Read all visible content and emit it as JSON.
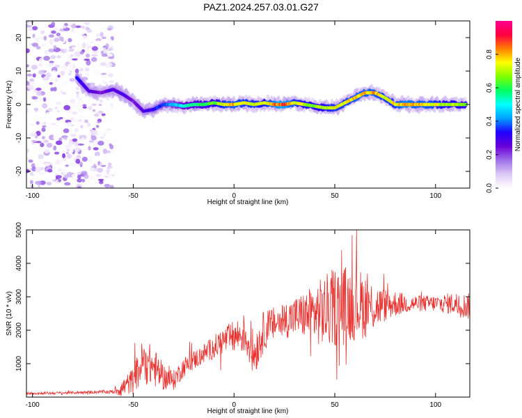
{
  "title": "PAZ1.2024.257.03.01.G27",
  "chart_data": [
    {
      "type": "heatmap",
      "xlabel": "Height of straight line (km)",
      "ylabel": "Frequency (Hz)",
      "xlim": [
        -103,
        117
      ],
      "ylim": [
        -25,
        25
      ],
      "xticks": [
        -100,
        -50,
        0,
        50,
        100
      ],
      "yticks": [
        -20,
        -10,
        0,
        10,
        20
      ],
      "colorbar": {
        "label": "Normalized spectral amplitude",
        "range": [
          0,
          1
        ],
        "ticks": [
          0.0,
          0.2,
          0.4,
          0.6,
          0.8
        ],
        "colormap": [
          "#ffffff",
          "#dcc8f5",
          "#a070e8",
          "#6a00d8",
          "#2000ff",
          "#00a0ff",
          "#00ffff",
          "#00ff60",
          "#80ff00",
          "#ffff00",
          "#ff8000",
          "#ff0040",
          "#ff0090"
        ]
      },
      "noise_region_x": [
        -103,
        -60
      ],
      "ridge": [
        {
          "x": -78,
          "freq": 8,
          "amp": 0.35
        },
        {
          "x": -72,
          "freq": 4,
          "amp": 0.3
        },
        {
          "x": -66,
          "freq": 3.5,
          "amp": 0.25
        },
        {
          "x": -60,
          "freq": 4.5,
          "amp": 0.3
        },
        {
          "x": -55,
          "freq": 3,
          "amp": 0.3
        },
        {
          "x": -50,
          "freq": 1,
          "amp": 0.25
        },
        {
          "x": -45,
          "freq": -2,
          "amp": 0.3
        },
        {
          "x": -40,
          "freq": -1.5,
          "amp": 0.35
        },
        {
          "x": -35,
          "freq": 0,
          "amp": 0.4
        },
        {
          "x": -30,
          "freq": 0,
          "amp": 0.45
        },
        {
          "x": -25,
          "freq": -0.5,
          "amp": 0.55
        },
        {
          "x": -20,
          "freq": 0,
          "amp": 0.6
        },
        {
          "x": -15,
          "freq": 0,
          "amp": 0.65
        },
        {
          "x": -10,
          "freq": 0.5,
          "amp": 0.7
        },
        {
          "x": -5,
          "freq": 0,
          "amp": 0.8
        },
        {
          "x": 0,
          "freq": 0,
          "amp": 0.85
        },
        {
          "x": 5,
          "freq": 0.5,
          "amp": 0.8
        },
        {
          "x": 10,
          "freq": 0,
          "amp": 0.8
        },
        {
          "x": 15,
          "freq": 0.5,
          "amp": 0.75
        },
        {
          "x": 20,
          "freq": 0,
          "amp": 0.9
        },
        {
          "x": 25,
          "freq": 0,
          "amp": 0.95
        },
        {
          "x": 30,
          "freq": 0.5,
          "amp": 0.8
        },
        {
          "x": 35,
          "freq": 0,
          "amp": 0.75
        },
        {
          "x": 40,
          "freq": -0.5,
          "amp": 0.7
        },
        {
          "x": 45,
          "freq": -1,
          "amp": 0.75
        },
        {
          "x": 50,
          "freq": -1,
          "amp": 0.8
        },
        {
          "x": 55,
          "freq": 0.5,
          "amp": 0.8
        },
        {
          "x": 60,
          "freq": 2,
          "amp": 0.85
        },
        {
          "x": 65,
          "freq": 3.5,
          "amp": 0.85
        },
        {
          "x": 70,
          "freq": 3.5,
          "amp": 0.85
        },
        {
          "x": 75,
          "freq": 2,
          "amp": 0.8
        },
        {
          "x": 80,
          "freq": 0,
          "amp": 0.8
        },
        {
          "x": 85,
          "freq": 0,
          "amp": 0.9
        },
        {
          "x": 90,
          "freq": 0,
          "amp": 0.85
        },
        {
          "x": 95,
          "freq": 0,
          "amp": 0.85
        },
        {
          "x": 100,
          "freq": 0,
          "amp": 0.8
        },
        {
          "x": 105,
          "freq": 0,
          "amp": 0.75
        },
        {
          "x": 110,
          "freq": 0,
          "amp": 0.75
        },
        {
          "x": 115,
          "freq": 0,
          "amp": 0.7
        }
      ]
    },
    {
      "type": "line",
      "xlabel": "Height of straight line (km)",
      "ylabel": "SNR (10 * v/v)",
      "xlim": [
        -103,
        117
      ],
      "ylim": [
        0,
        5000
      ],
      "xticks": [
        -100,
        -50,
        0,
        50,
        100
      ],
      "yticks": [
        1000,
        2000,
        3000,
        4000,
        5000
      ],
      "line_color": "#e8322f",
      "series": [
        {
          "x": [
            -103,
            -90,
            -80,
            -70,
            -60,
            -56,
            -50,
            -45,
            -40,
            -35,
            -30,
            -25,
            -20,
            -15,
            -10,
            -5,
            0,
            5,
            10,
            15,
            20,
            25,
            30,
            35,
            40,
            45,
            50,
            55,
            60,
            65,
            70,
            75,
            80,
            85,
            90,
            95,
            100,
            105,
            110,
            117
          ],
          "y": [
            110,
            120,
            130,
            150,
            160,
            250,
            500,
            1100,
            900,
            600,
            500,
            900,
            1100,
            1300,
            1500,
            1700,
            1800,
            1900,
            1300,
            2000,
            2200,
            2300,
            2400,
            2450,
            2500,
            2550,
            2700,
            2750,
            2800,
            2750,
            2700,
            2750,
            2800,
            2800,
            2800,
            2800,
            2800,
            2800,
            2800,
            2700
          ],
          "noise_amplitude": [
            40,
            40,
            40,
            50,
            60,
            250,
            400,
            700,
            600,
            400,
            300,
            300,
            300,
            300,
            350,
            400,
            500,
            600,
            700,
            600,
            500,
            550,
            600,
            700,
            900,
            1100,
            1200,
            1200,
            1100,
            1000,
            700,
            500,
            400,
            300,
            250,
            250,
            250,
            300,
            350,
            400
          ]
        }
      ]
    }
  ]
}
